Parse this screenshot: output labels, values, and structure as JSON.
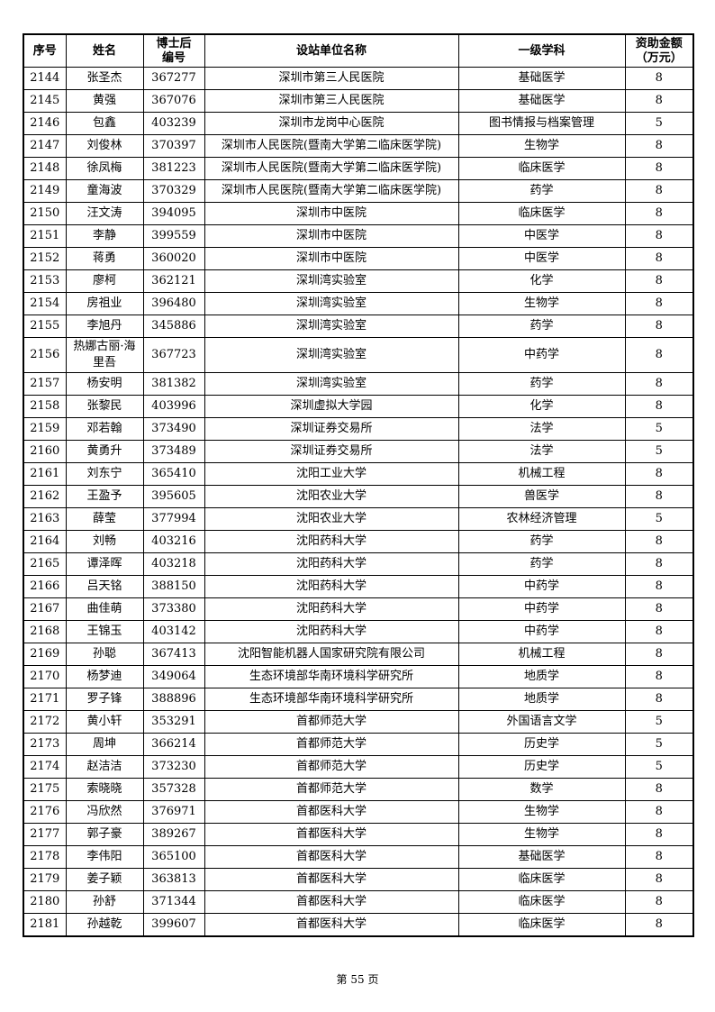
{
  "table": {
    "header": [
      [
        "序号"
      ],
      [
        "姓名"
      ],
      [
        "博士后",
        "编号"
      ],
      [
        "设站单位名称"
      ],
      [
        "一级学科"
      ],
      [
        "资助金额",
        "（万元）"
      ]
    ],
    "rows": [
      [
        "2144",
        "张圣杰",
        "367277",
        "深圳市第三人民医院",
        "基础医学",
        "8"
      ],
      [
        "2145",
        "黄强",
        "367076",
        "深圳市第三人民医院",
        "基础医学",
        "8"
      ],
      [
        "2146",
        "包鑫",
        "403239",
        "深圳市龙岗中心医院",
        "图书情报与档案管理",
        "5"
      ],
      [
        "2147",
        "刘俊林",
        "370397",
        "深圳市人民医院(暨南大学第二临床医学院)",
        "生物学",
        "8"
      ],
      [
        "2148",
        "徐凤梅",
        "381223",
        "深圳市人民医院(暨南大学第二临床医学院)",
        "临床医学",
        "8"
      ],
      [
        "2149",
        "童海波",
        "370329",
        "深圳市人民医院(暨南大学第二临床医学院)",
        "药学",
        "8"
      ],
      [
        "2150",
        "汪文涛",
        "394095",
        "深圳市中医院",
        "临床医学",
        "8"
      ],
      [
        "2151",
        "李静",
        "399559",
        "深圳市中医院",
        "中医学",
        "8"
      ],
      [
        "2152",
        "蒋勇",
        "360020",
        "深圳市中医院",
        "中医学",
        "8"
      ],
      [
        "2153",
        "廖柯",
        "362121",
        "深圳湾实验室",
        "化学",
        "8"
      ],
      [
        "2154",
        "房祖业",
        "396480",
        "深圳湾实验室",
        "生物学",
        "8"
      ],
      [
        "2155",
        "李旭丹",
        "345886",
        "深圳湾实验室",
        "药学",
        "8"
      ],
      [
        "2156",
        "热娜古丽·海里吾",
        "367723",
        "深圳湾实验室",
        "中药学",
        "8"
      ],
      [
        "2157",
        "杨安明",
        "381382",
        "深圳湾实验室",
        "药学",
        "8"
      ],
      [
        "2158",
        "张黎民",
        "403996",
        "深圳虚拟大学园",
        "化学",
        "8"
      ],
      [
        "2159",
        "邓若翰",
        "373490",
        "深圳证券交易所",
        "法学",
        "5"
      ],
      [
        "2160",
        "黄勇升",
        "373489",
        "深圳证券交易所",
        "法学",
        "5"
      ],
      [
        "2161",
        "刘东宁",
        "365410",
        "沈阳工业大学",
        "机械工程",
        "8"
      ],
      [
        "2162",
        "王盈予",
        "395605",
        "沈阳农业大学",
        "兽医学",
        "8"
      ],
      [
        "2163",
        "薛莹",
        "377994",
        "沈阳农业大学",
        "农林经济管理",
        "5"
      ],
      [
        "2164",
        "刘畅",
        "403216",
        "沈阳药科大学",
        "药学",
        "8"
      ],
      [
        "2165",
        "谭泽晖",
        "403218",
        "沈阳药科大学",
        "药学",
        "8"
      ],
      [
        "2166",
        "吕天铭",
        "388150",
        "沈阳药科大学",
        "中药学",
        "8"
      ],
      [
        "2167",
        "曲佳萌",
        "373380",
        "沈阳药科大学",
        "中药学",
        "8"
      ],
      [
        "2168",
        "王锦玉",
        "403142",
        "沈阳药科大学",
        "中药学",
        "8"
      ],
      [
        "2169",
        "孙聪",
        "367413",
        "沈阳智能机器人国家研究院有限公司",
        "机械工程",
        "8"
      ],
      [
        "2170",
        "杨梦迪",
        "349064",
        "生态环境部华南环境科学研究所",
        "地质学",
        "8"
      ],
      [
        "2171",
        "罗子锋",
        "388896",
        "生态环境部华南环境科学研究所",
        "地质学",
        "8"
      ],
      [
        "2172",
        "黄小轩",
        "353291",
        "首都师范大学",
        "外国语言文学",
        "5"
      ],
      [
        "2173",
        "周坤",
        "366214",
        "首都师范大学",
        "历史学",
        "5"
      ],
      [
        "2174",
        "赵洁洁",
        "373230",
        "首都师范大学",
        "历史学",
        "5"
      ],
      [
        "2175",
        "索晓晓",
        "357328",
        "首都师范大学",
        "数学",
        "8"
      ],
      [
        "2176",
        "冯欣然",
        "376971",
        "首都医科大学",
        "生物学",
        "8"
      ],
      [
        "2177",
        "郭子豪",
        "389267",
        "首都医科大学",
        "生物学",
        "8"
      ],
      [
        "2178",
        "李伟阳",
        "365100",
        "首都医科大学",
        "基础医学",
        "8"
      ],
      [
        "2179",
        "姜子颖",
        "363813",
        "首都医科大学",
        "临床医学",
        "8"
      ],
      [
        "2180",
        "孙舒",
        "371344",
        "首都医科大学",
        "临床医学",
        "8"
      ],
      [
        "2181",
        "孙越乾",
        "399607",
        "首都医科大学",
        "临床医学",
        "8"
      ]
    ]
  },
  "footer": "第 55 页"
}
